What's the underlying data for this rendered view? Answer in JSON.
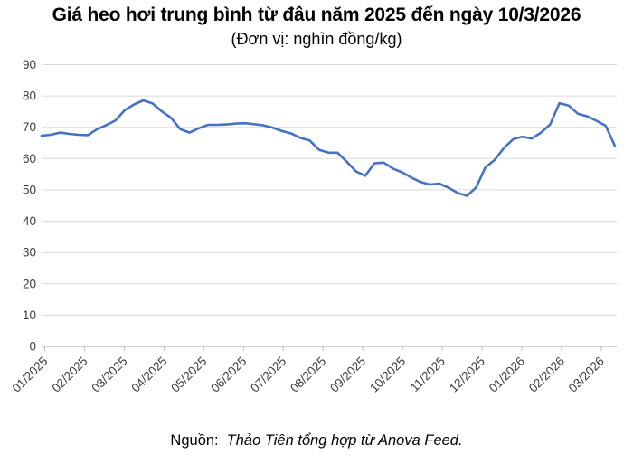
{
  "header": {
    "title": "Giá heo hơi trung bình từ đâu năm 2025 đến ngày 10/3/2026",
    "subtitle": "(Đơn vị: nghìn đồng/kg)"
  },
  "footer": {
    "source_label": "Nguồn:",
    "source_text": "Thảo Tiên tổng hợp từ Anova Feed."
  },
  "chart_data": {
    "type": "line",
    "title": "Giá heo hơi trung bình từ đâu năm 2025 đến ngày 10/3/2026",
    "unit": "nghìn đồng/kg",
    "xlabel": "",
    "ylabel": "",
    "ylim": [
      0,
      90
    ],
    "y_ticks": [
      90,
      80,
      70,
      60,
      50,
      40,
      30,
      20,
      10,
      0
    ],
    "categories": [
      "01/2025",
      "02/2025",
      "03/2025",
      "04/2025",
      "05/2025",
      "06/2025",
      "07/2025",
      "08/2025",
      "09/2025",
      "10/2025",
      "11/2025",
      "12/2025",
      "01/2026",
      "02/2026",
      "03/2026"
    ],
    "note": "single unlabeled blue series; values are ~weekly samples read from the curve, in thousand VND/kg, Jan 2025 to 10/3/2026",
    "values": [
      67.3,
      67.6,
      68.3,
      67.9,
      67.6,
      67.5,
      69.4,
      70.7,
      72.2,
      75.5,
      77.3,
      78.6,
      77.6,
      75.1,
      73.0,
      69.4,
      68.3,
      69.7,
      70.8,
      70.8,
      70.9,
      71.2,
      71.3,
      71.0,
      70.6,
      69.9,
      68.8,
      68.0,
      66.6,
      65.8,
      62.8,
      61.9,
      61.9,
      59.0,
      55.9,
      54.5,
      58.5,
      58.7,
      56.8,
      55.6,
      53.9,
      52.5,
      51.7,
      52.0,
      50.7,
      49.0,
      48.1,
      50.8,
      57.2,
      59.6,
      63.4,
      66.2,
      67.0,
      66.4,
      68.3,
      70.9,
      77.7,
      76.9,
      74.3,
      73.5,
      72.1,
      70.5,
      64.0
    ],
    "grid": "horizontal",
    "legend": "none",
    "colors": {
      "line": "#4472C4",
      "grid": "#DADADA",
      "axis": "#A6A6A6",
      "tick": "#BFBFBF",
      "label": "#3D3D3D"
    }
  }
}
